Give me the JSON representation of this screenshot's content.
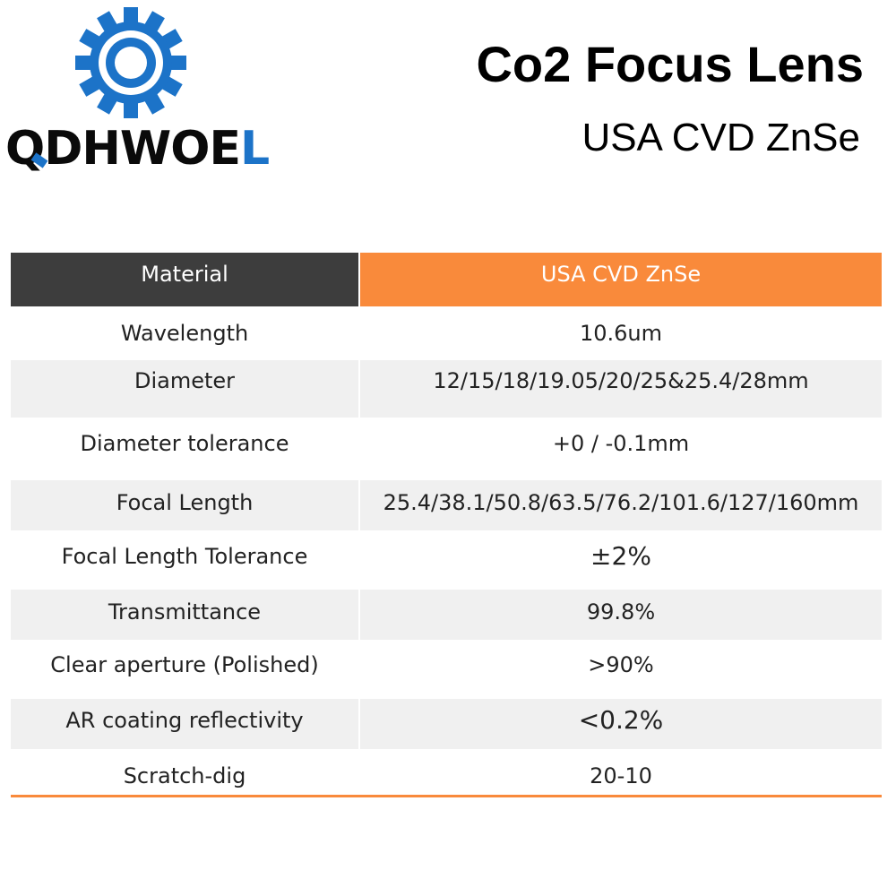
{
  "brand": {
    "name_prefix": "QDHWOE",
    "name_suffix": "L",
    "colors": {
      "gear": "#1c73c8",
      "accent": "#1c73c8",
      "text": "#0a0a0a"
    },
    "logo_icon": "gear-icon"
  },
  "header": {
    "title": "Co2 Focus Lens",
    "subtitle": "USA CVD ZnSe"
  },
  "spec_table": {
    "header": {
      "label": "Material",
      "value": "USA CVD ZnSe"
    },
    "rows": [
      {
        "label": "Wavelength",
        "value": "10.6um"
      },
      {
        "label": "Diameter",
        "value": "12/15/18/19.05/20/25&25.4/28mm"
      },
      {
        "label": "Diameter tolerance",
        "value": "+0 / -0.1mm"
      },
      {
        "label": "Focal Length",
        "value": "25.4/38.1/50.8/63.5/76.2/101.6/127/160mm"
      },
      {
        "label": "Focal Length Tolerance",
        "value": "±2%"
      },
      {
        "label": "Transmittance",
        "value": "99.8%"
      },
      {
        "label": "Clear aperture (Polished)",
        "value": ">90%"
      },
      {
        "label": "AR coating reflectivity",
        "value": "<0.2%"
      },
      {
        "label": "Scratch-dig",
        "value": "20-10"
      }
    ],
    "colors": {
      "header_left": "#3d3d3d",
      "header_right": "#f98a3b",
      "shaded_row": "#f0f0f0",
      "rule": "#f98a3b"
    }
  }
}
